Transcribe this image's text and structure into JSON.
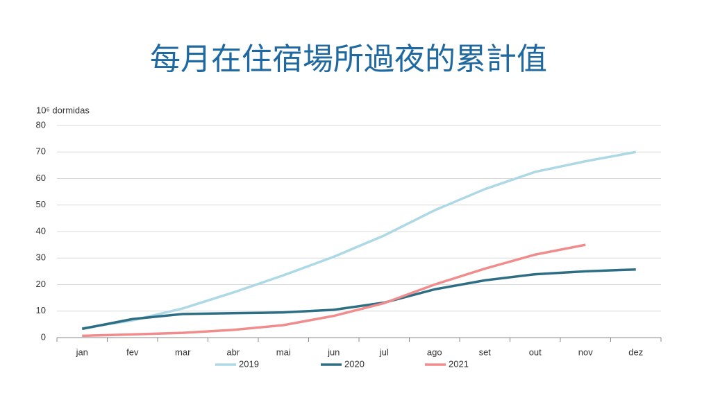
{
  "chart_data": {
    "type": "line",
    "title": "每月在住宿場所過夜的累計值",
    "y_label": "10⁶ dormidas",
    "categories": [
      "jan",
      "fev",
      "mar",
      "abr",
      "mai",
      "jun",
      "jul",
      "ago",
      "set",
      "out",
      "nov",
      "dez"
    ],
    "series": [
      {
        "name": "2019",
        "color": "#add8e6",
        "values": [
          3.5,
          6.5,
          11,
          17,
          23.5,
          30.5,
          38.5,
          48,
          56,
          62.5,
          66.5,
          70
        ]
      },
      {
        "name": "2020",
        "color": "#2e6e84",
        "values": [
          3.3,
          7,
          8.9,
          9.2,
          9.5,
          10.5,
          13.2,
          18.2,
          21.6,
          23.9,
          25,
          25.7
        ]
      },
      {
        "name": "2021",
        "color": "#f08c8c",
        "values": [
          0.7,
          1.2,
          1.8,
          2.9,
          4.7,
          8.2,
          13,
          20,
          26,
          31.3,
          35,
          null
        ]
      }
    ],
    "ylim": [
      0,
      80
    ],
    "yticks": [
      0,
      10,
      20,
      30,
      40,
      50,
      60,
      70,
      80
    ],
    "grid": true,
    "legend": "bottom"
  }
}
